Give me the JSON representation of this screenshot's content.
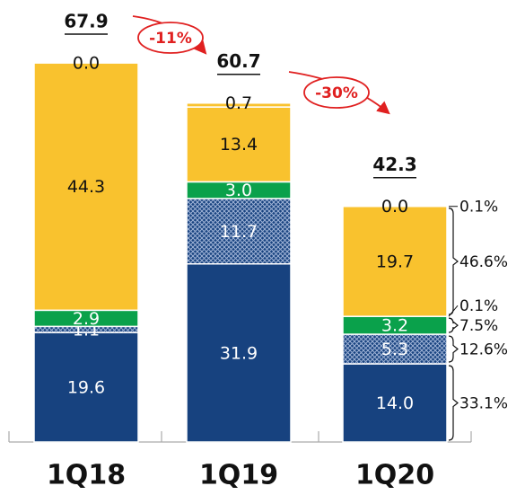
{
  "chart_data": {
    "type": "stacked-bar",
    "categories": [
      "1Q18",
      "1Q19",
      "1Q20"
    ],
    "series": [
      {
        "color": "#17427f",
        "values": [
          19.6,
          31.9,
          14.0
        ],
        "value_labels": [
          "19.6",
          "31.9",
          "14.0"
        ]
      },
      {
        "color": "#17427f",
        "pattern": "crosshatch",
        "values": [
          1.1,
          11.7,
          5.3
        ],
        "value_labels": [
          "1.1",
          "11.7",
          "5.3"
        ]
      },
      {
        "color": "#0aa14b",
        "values": [
          2.9,
          3.0,
          3.2
        ],
        "value_labels": [
          "2.9",
          "3.0",
          "3.2"
        ]
      },
      {
        "color": "#f9c22e",
        "values": [
          0.0,
          0.0,
          0.0
        ],
        "value_labels": [
          "0.0",
          "0.0",
          "0.0"
        ]
      },
      {
        "color": "#f9c22e",
        "values": [
          44.3,
          13.4,
          19.7
        ],
        "value_labels": [
          "44.3",
          "13.4",
          "19.7"
        ]
      },
      {
        "color": "#f9c22e",
        "values": [
          0.0,
          0.7,
          0.0
        ],
        "value_labels": [
          "0.0",
          "0.7",
          "0.0"
        ]
      }
    ],
    "totals": [
      67.9,
      60.7,
      42.3
    ],
    "changes": {
      "values": [
        -11,
        -30
      ],
      "value_labels": [
        "-11%",
        "-30%"
      ]
    },
    "shares": {
      "values": [
        33.1,
        12.6,
        7.5,
        0.1,
        46.6,
        0.1
      ],
      "value_labels": [
        "33.1%",
        "12.6%",
        "7.5%",
        "0.1%",
        "46.6%",
        "0.1%"
      ]
    }
  }
}
